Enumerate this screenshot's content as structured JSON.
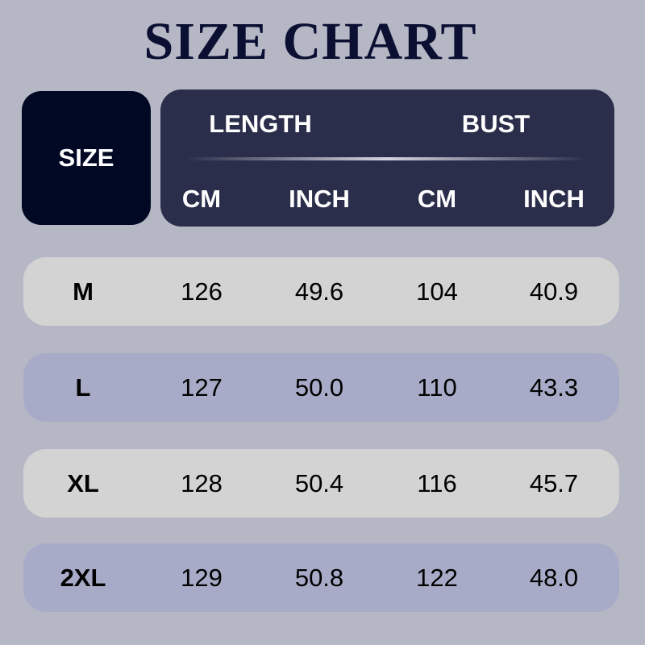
{
  "title": "SIZE CHART",
  "header": {
    "size": "SIZE",
    "length": "LENGTH",
    "bust": "BUST",
    "cm": "CM",
    "inch": "INCH"
  },
  "colors": {
    "background": "#b5b7c5",
    "size_header": "#000823",
    "header": "#2b2e4a",
    "row_light": "#d3d3d3",
    "row_dark": "#a8abc7",
    "title": "#0b1033"
  },
  "rows": [
    {
      "size": "M",
      "length_cm": "126",
      "length_inch": "49.6",
      "bust_cm": "104",
      "bust_inch": "40.9"
    },
    {
      "size": "L",
      "length_cm": "127",
      "length_inch": "50.0",
      "bust_cm": "110",
      "bust_inch": "43.3"
    },
    {
      "size": "XL",
      "length_cm": "128",
      "length_inch": "50.4",
      "bust_cm": "116",
      "bust_inch": "45.7"
    },
    {
      "size": "2XL",
      "length_cm": "129",
      "length_inch": "50.8",
      "bust_cm": "122",
      "bust_inch": "48.0"
    }
  ]
}
